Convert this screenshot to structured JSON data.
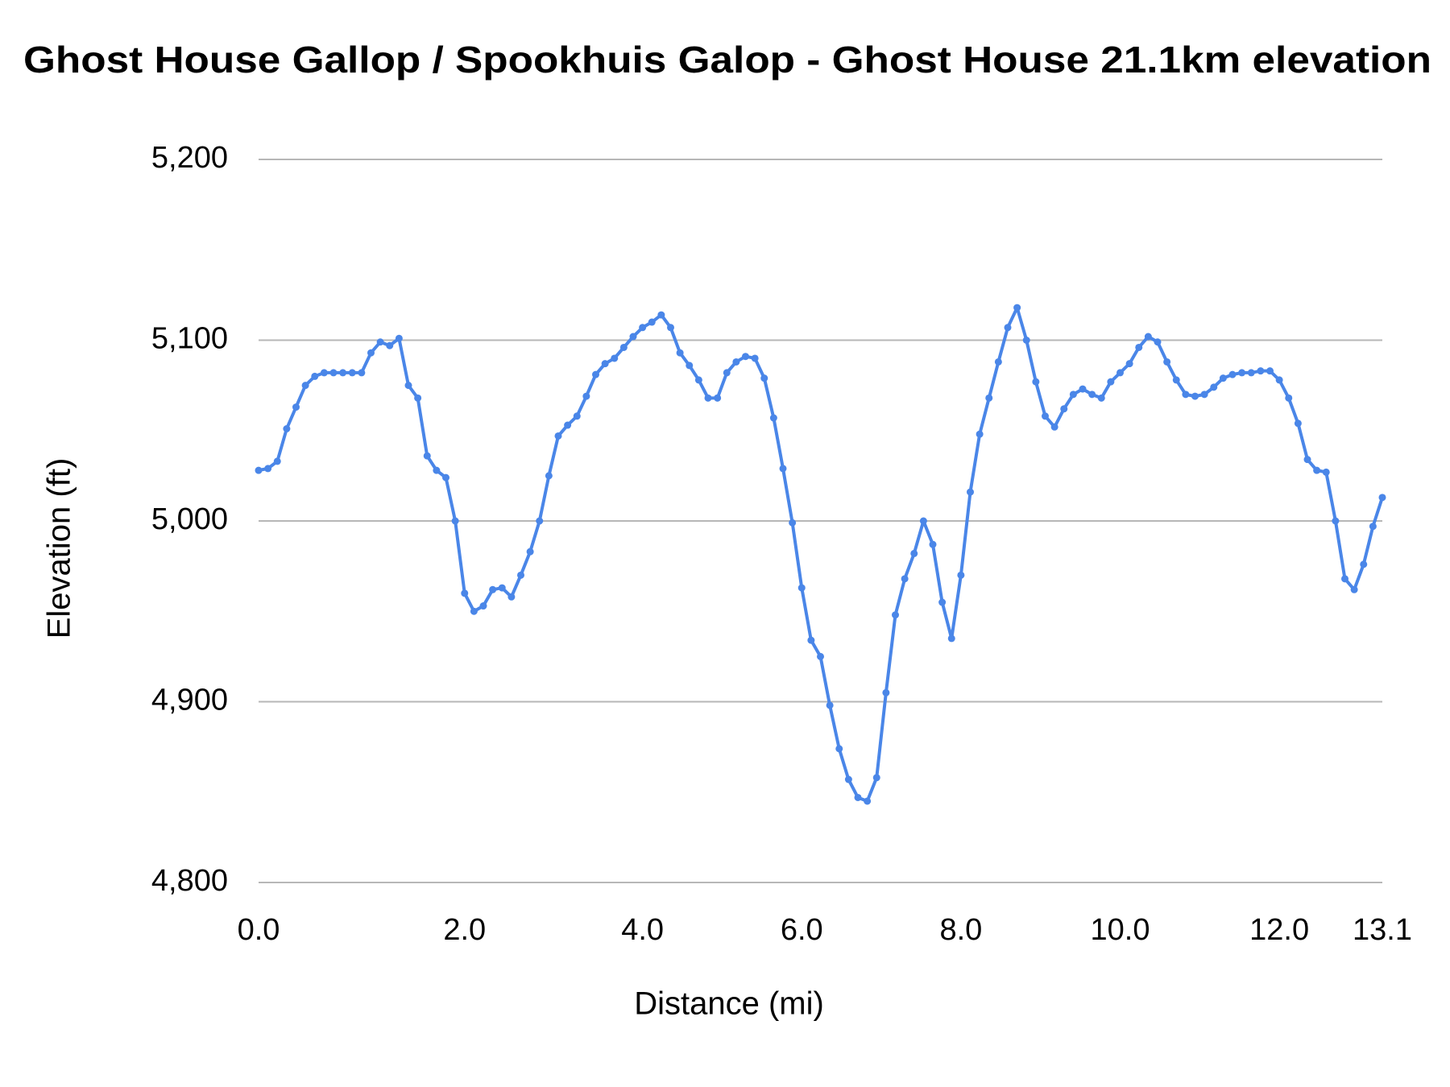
{
  "chart_data": {
    "type": "line",
    "title": "Ghost House Gallop / Spookhuis Galop -  Ghost House 21.1km elevation",
    "x_label": "Distance (mi)",
    "y_label": "Elevation (ft)",
    "color": "#4a86e8",
    "grid": true,
    "ylim": [
      4800,
      5200
    ],
    "yticks": [
      {
        "value": 4800,
        "label": "4,800"
      },
      {
        "value": 4900,
        "label": "4,900"
      },
      {
        "value": 5000,
        "label": "5,000"
      },
      {
        "value": 5100,
        "label": "5,100"
      },
      {
        "value": 5200,
        "label": "5,200"
      }
    ],
    "categories": [
      "0.0",
      null,
      null,
      null,
      null,
      null,
      null,
      null,
      null,
      null,
      null,
      null,
      null,
      null,
      null,
      null,
      null,
      null,
      null,
      null,
      null,
      null,
      "2.0",
      null,
      null,
      null,
      null,
      null,
      null,
      null,
      null,
      null,
      null,
      null,
      null,
      null,
      null,
      null,
      null,
      null,
      null,
      "4.0",
      null,
      null,
      null,
      null,
      null,
      null,
      null,
      null,
      null,
      null,
      null,
      null,
      null,
      null,
      null,
      null,
      "6.0",
      null,
      null,
      null,
      null,
      null,
      null,
      null,
      null,
      null,
      null,
      null,
      null,
      null,
      null,
      null,
      null,
      "8.0",
      null,
      null,
      null,
      null,
      null,
      null,
      null,
      null,
      null,
      null,
      null,
      null,
      null,
      null,
      null,
      null,
      "10.0",
      null,
      null,
      null,
      null,
      null,
      null,
      null,
      null,
      null,
      null,
      null,
      null,
      null,
      null,
      null,
      null,
      "12.0",
      null,
      null,
      null,
      null,
      null,
      null,
      null,
      null,
      null,
      null,
      "13.1"
    ],
    "values": [
      5028,
      5029,
      5033,
      5051,
      5063,
      5075,
      5080,
      5082,
      5082,
      5082,
      5082,
      5082,
      5093,
      5099,
      5097,
      5101,
      5075,
      5068,
      5036,
      5028,
      5024,
      5000,
      4960,
      4950,
      4953,
      4962,
      4963,
      4958,
      4970,
      4983,
      5000,
      5025,
      5047,
      5053,
      5058,
      5069,
      5081,
      5087,
      5090,
      5096,
      5102,
      5107,
      5110,
      5114,
      5107,
      5093,
      5086,
      5078,
      5068,
      5068,
      5082,
      5088,
      5091,
      5090,
      5079,
      5057,
      5029,
      4999,
      4963,
      4934,
      4925,
      4898,
      4874,
      4857,
      4847,
      4845,
      4858,
      4905,
      4948,
      4968,
      4982,
      5000,
      4987,
      4955,
      4935,
      4970,
      5016,
      5048,
      5068,
      5088,
      5107,
      5118,
      5100,
      5077,
      5058,
      5052,
      5062,
      5070,
      5073,
      5070,
      5068,
      5077,
      5082,
      5087,
      5096,
      5102,
      5099,
      5088,
      5078,
      5070,
      5069,
      5070,
      5074,
      5079,
      5081,
      5082,
      5082,
      5083,
      5083,
      5078,
      5068,
      5054,
      5034,
      5028,
      5027,
      5000,
      4968,
      4962,
      4976,
      4997,
      5013
    ]
  }
}
